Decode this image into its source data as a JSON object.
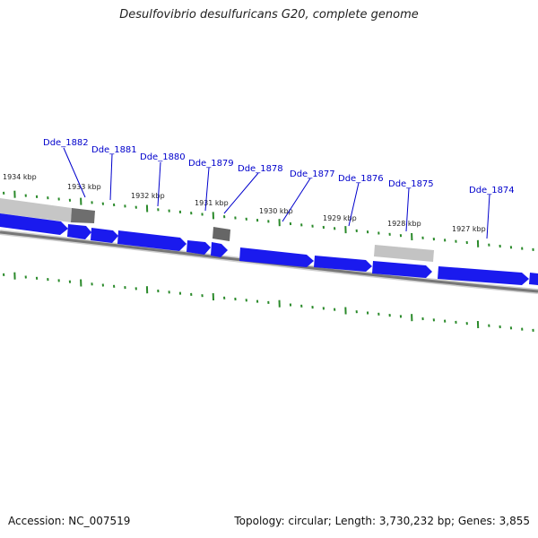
{
  "title": "Desulfovibrio desulfuricans G20, complete genome",
  "footer": {
    "accession": "Accession: NC_007519",
    "summary": "Topology: circular; Length: 3,730,232 bp; Genes: 3,855"
  },
  "colors": {
    "gene_arrow": "#1a1aee",
    "gene_highlight": "#8080ff",
    "tick": "#2a8a2a",
    "backbone": "#7a7a7a",
    "feature_light": "#c8c8c8",
    "feature_dark": "#6e6e6e",
    "label": "#0000cc"
  },
  "kbp_labels": [
    "1934 kbp",
    "1933 kbp",
    "1932 kbp",
    "1931 kbp",
    "1930 kbp",
    "1929 kbp",
    "1928 kbp",
    "1927 kbp"
  ],
  "genes": [
    "Dde_1882",
    "Dde_1881",
    "Dde_1880",
    "Dde_1879",
    "Dde_1878",
    "Dde_1877",
    "Dde_1876",
    "Dde_1875",
    "Dde_1874"
  ]
}
